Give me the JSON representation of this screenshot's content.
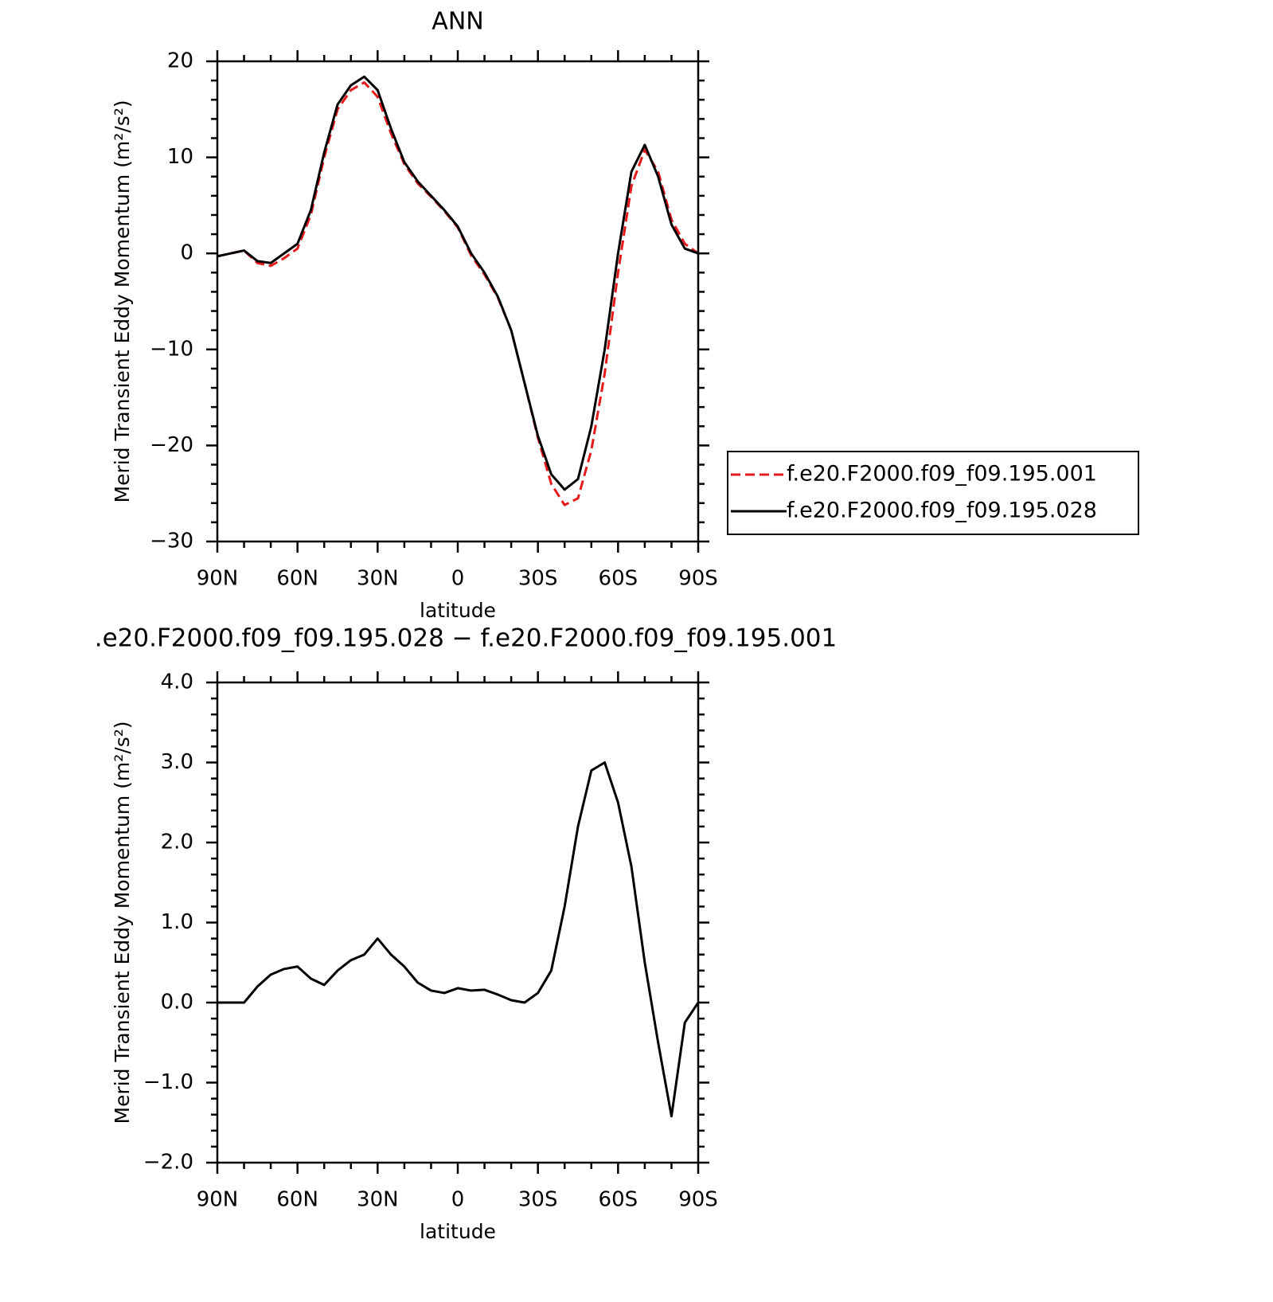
{
  "chart_data": [
    {
      "type": "line",
      "title": "ANN",
      "xlabel": "latitude",
      "ylabel": "Merid Transient Eddy Momentum (m²/s²)",
      "x": [
        90,
        85,
        80,
        75,
        70,
        65,
        60,
        55,
        50,
        45,
        40,
        35,
        30,
        25,
        20,
        15,
        10,
        5,
        0,
        -5,
        -10,
        -15,
        -20,
        -25,
        -30,
        -35,
        -40,
        -45,
        -50,
        -55,
        -60,
        -65,
        -70,
        -75,
        -80,
        -85,
        -90
      ],
      "series": [
        {
          "name": "f.e20.F2000.f09_f09.195.001",
          "color": "#e41a1c",
          "style": "dashed",
          "values": [
            -0.3,
            0.0,
            0.3,
            -1.0,
            -1.3,
            -0.5,
            0.5,
            4,
            10,
            15,
            17,
            17.8,
            16.3,
            12.5,
            9.3,
            7.3,
            5.9,
            4.4,
            2.7,
            -0.2,
            -2.2,
            -4.6,
            -8,
            -13.5,
            -19.2,
            -24,
            -26.2,
            -25.5,
            -20.5,
            -12.5,
            -2,
            7,
            10.8,
            8.5,
            3.5,
            1.0,
            0
          ]
        },
        {
          "name": "f.e20.F2000.f09_f09.195.028",
          "color": "#000000",
          "style": "solid",
          "values": [
            -0.3,
            0.0,
            0.3,
            -0.8,
            -1.0,
            0,
            1.0,
            4.5,
            10.5,
            15.5,
            17.5,
            18.4,
            17,
            13,
            9.5,
            7.5,
            6,
            4.5,
            2.8,
            0,
            -2,
            -4.5,
            -8,
            -13.5,
            -19,
            -23,
            -24.6,
            -23.5,
            -18,
            -10,
            0,
            8.5,
            11.3,
            8,
            3,
            0.5,
            0
          ]
        }
      ],
      "xlim": [
        90,
        -90
      ],
      "xticks": [
        {
          "value": 90,
          "label": "90N"
        },
        {
          "value": 60,
          "label": "60N"
        },
        {
          "value": 30,
          "label": "30N"
        },
        0,
        {
          "value": -30,
          "label": "30S"
        },
        {
          "value": -60,
          "label": "60S"
        },
        {
          "value": -90,
          "label": "90S"
        }
      ],
      "xminorticks": [
        80,
        70,
        50,
        40,
        20,
        10,
        -10,
        -20,
        -40,
        -50,
        -70,
        -80
      ],
      "ylim": [
        -30,
        20
      ],
      "yticks": [
        {
          "value": -30,
          "label": "−30"
        },
        {
          "value": -20,
          "label": "−20"
        },
        {
          "value": -10,
          "label": "−10"
        },
        0,
        10,
        20
      ],
      "yminorticks": [
        -28,
        -26,
        -24,
        -22,
        -18,
        -16,
        -14,
        -12,
        -8,
        -6,
        -4,
        -2,
        2,
        4,
        6,
        8,
        12,
        14,
        16,
        18
      ],
      "legend": "right"
    },
    {
      "type": "line",
      "title": ".e20.F2000.f09_f09.195.028 − f.e20.F2000.f09_f09.195.001",
      "xlabel": "latitude",
      "ylabel": "Merid Transient Eddy Momentum (m²/s²)",
      "x": [
        90,
        85,
        80,
        75,
        70,
        65,
        60,
        55,
        50,
        45,
        40,
        35,
        30,
        25,
        20,
        15,
        10,
        5,
        0,
        -5,
        -10,
        -15,
        -20,
        -25,
        -30,
        -35,
        -40,
        -45,
        -50,
        -55,
        -60,
        -65,
        -70,
        -75,
        -80,
        -85,
        -90
      ],
      "series": [
        {
          "color": "#000000",
          "style": "solid",
          "values": [
            0.0,
            0.0,
            0.0,
            0.2,
            0.35,
            0.42,
            0.45,
            0.3,
            0.22,
            0.4,
            0.53,
            0.6,
            0.8,
            0.6,
            0.45,
            0.25,
            0.15,
            0.12,
            0.18,
            0.15,
            0.16,
            0.1,
            0.03,
            0.0,
            0.12,
            0.4,
            1.2,
            2.2,
            2.9,
            3.0,
            2.5,
            1.7,
            0.5,
            -0.5,
            -1.42,
            -0.25,
            0.0
          ]
        }
      ],
      "xlim": [
        90,
        -90
      ],
      "xticks": [
        {
          "value": 90,
          "label": "90N"
        },
        {
          "value": 60,
          "label": "60N"
        },
        {
          "value": 30,
          "label": "30N"
        },
        0,
        {
          "value": -30,
          "label": "30S"
        },
        {
          "value": -60,
          "label": "60S"
        },
        {
          "value": -90,
          "label": "90S"
        }
      ],
      "xminorticks": [
        80,
        70,
        50,
        40,
        20,
        10,
        -10,
        -20,
        -40,
        -50,
        -70,
        -80
      ],
      "ylim": [
        -2,
        4
      ],
      "yticks": [
        {
          "value": -2,
          "label": "−2.0"
        },
        {
          "value": -1,
          "label": "−1.0"
        },
        {
          "value": 0,
          "label": "0.0"
        },
        {
          "value": 1,
          "label": "1.0"
        },
        {
          "value": 2,
          "label": "2.0"
        },
        {
          "value": 3,
          "label": "3.0"
        },
        {
          "value": 4,
          "label": "4.0"
        }
      ],
      "yminorticks": [
        -1.8,
        -1.6,
        -1.4,
        -1.2,
        -0.8,
        -0.6,
        -0.4,
        -0.2,
        0.2,
        0.4,
        0.6,
        0.8,
        1.2,
        1.4,
        1.6,
        1.8,
        2.2,
        2.4,
        2.6,
        2.8,
        3.2,
        3.4,
        3.6,
        3.8
      ]
    }
  ]
}
